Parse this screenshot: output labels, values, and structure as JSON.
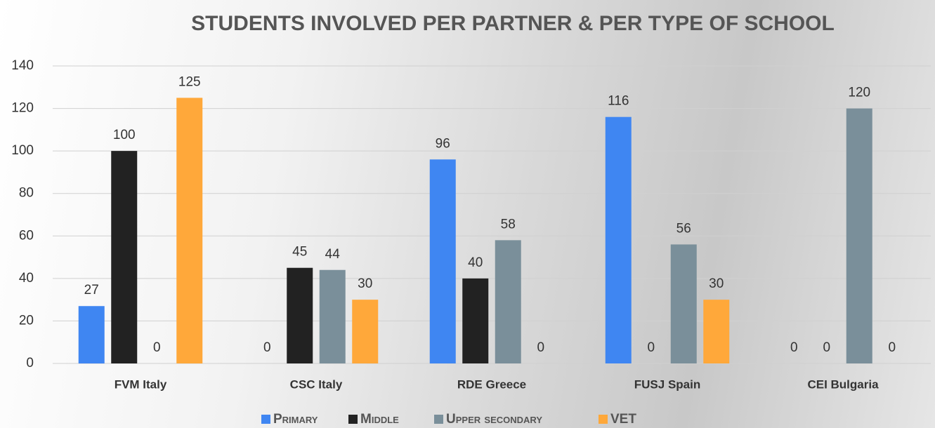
{
  "chart_data": {
    "type": "bar",
    "title": "STUDENTS INVOLVED PER PARTNER & PER TYPE OF SCHOOL",
    "categories": [
      "FVM Italy",
      "CSC Italy",
      "RDE Greece",
      "FUSJ Spain",
      "CEI Bulgaria"
    ],
    "series": [
      {
        "name": "Primary",
        "color": "#3f86f2",
        "values": [
          27,
          0,
          96,
          116,
          0
        ]
      },
      {
        "name": "Middle",
        "color": "#222222",
        "values": [
          100,
          45,
          40,
          0,
          0
        ]
      },
      {
        "name": "Upper secondary",
        "color": "#7a8f9a",
        "values": [
          0,
          44,
          58,
          56,
          120
        ]
      },
      {
        "name": "VET",
        "color": "#ffa83a",
        "values": [
          125,
          30,
          0,
          30,
          0
        ]
      }
    ],
    "ylim": [
      0,
      140
    ],
    "yticks": [
      0,
      20,
      40,
      60,
      80,
      100,
      120,
      140
    ],
    "grid": true,
    "legend": "bottom"
  }
}
